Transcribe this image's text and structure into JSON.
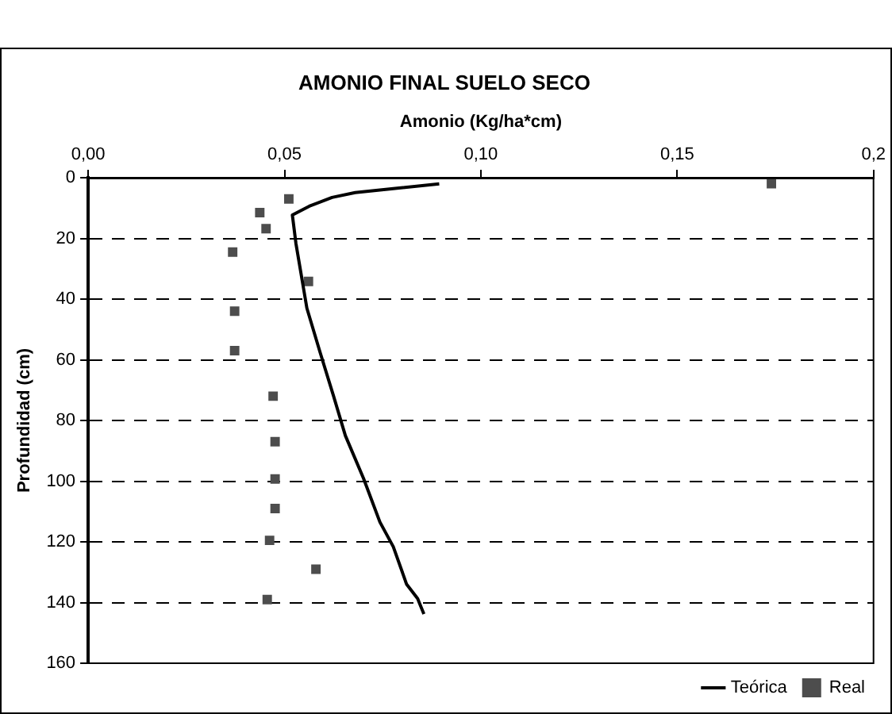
{
  "chart_data": {
    "type": "line",
    "title": "AMONIO FINAL SUELO SECO",
    "xlabel": "Amonio (Kg/ha*cm)",
    "ylabel": "Profundidad (cm)",
    "xlim": [
      0,
      0.2
    ],
    "xticks": [
      {
        "value": 0,
        "label": "0,00"
      },
      {
        "value": 0.05,
        "label": "0,05"
      },
      {
        "value": 0.1,
        "label": "0,10"
      },
      {
        "value": 0.15,
        "label": "0,15"
      },
      {
        "value": 0.2,
        "label": "0,2"
      }
    ],
    "ylim": [
      160,
      0
    ],
    "yticks": [
      0,
      20,
      40,
      60,
      80,
      100,
      120,
      140,
      160
    ],
    "grid": "y",
    "legend": "bottom right",
    "series": [
      {
        "name": "Teórica",
        "color": "#000000",
        "marker": "none",
        "x": [
          0.0894,
          0.0777,
          0.068,
          0.0621,
          0.0563,
          0.052,
          0.0529,
          0.0557,
          0.0591,
          0.0625,
          0.0655,
          0.0701,
          0.0743,
          0.0777,
          0.0811,
          0.0839,
          0.0855
        ],
        "values": [
          2,
          3.6,
          4.9,
          6.5,
          9.4,
          12.3,
          21.6,
          43,
          57.7,
          72,
          85,
          99,
          113.5,
          121.6,
          134,
          138.7,
          143.8
        ]
      },
      {
        "name": "Real",
        "type": "scatter",
        "color": "#4d4d4d",
        "marker": "square",
        "x": [
          0.174,
          0.0511,
          0.0437,
          0.0453,
          0.0368,
          0.0561,
          0.0373,
          0.0373,
          0.0471,
          0.0476,
          0.0476,
          0.0476,
          0.0462,
          0.058,
          0.0456
        ],
        "values": [
          2,
          7,
          11.5,
          16.8,
          24.5,
          34.2,
          44,
          57,
          72,
          87,
          99.3,
          109,
          119.5,
          129,
          139
        ]
      }
    ]
  }
}
